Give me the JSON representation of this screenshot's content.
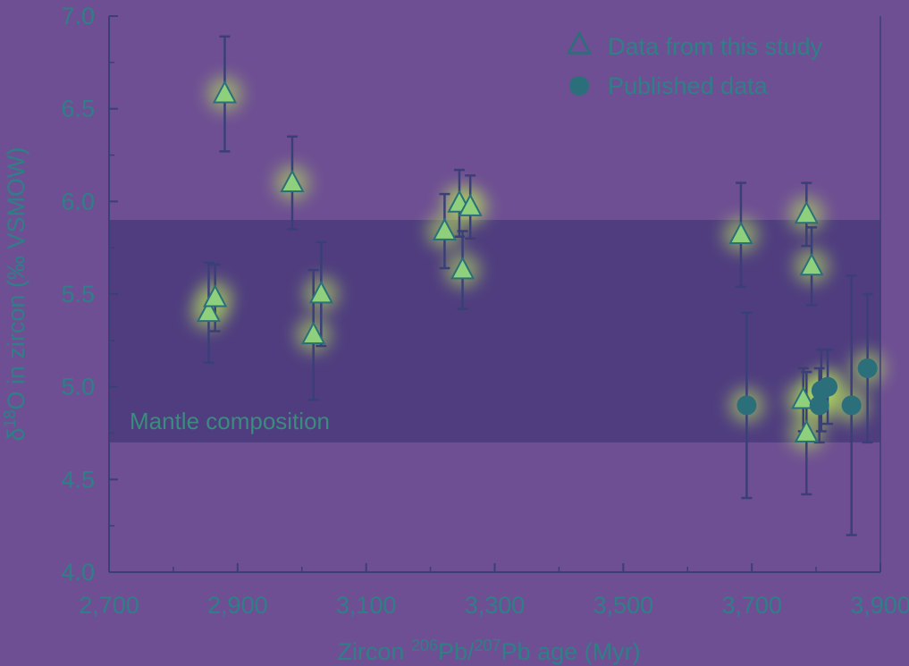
{
  "chart_data": {
    "type": "scatter",
    "xlabel_main": "Zircon ",
    "xlabel_sup1": "206",
    "xlabel_mid": "Pb/",
    "xlabel_sup2": "207",
    "xlabel_end": "Pb age (Myr)",
    "ylabel_pre": "δ",
    "ylabel_sup": "18",
    "ylabel_post": "O in zircon (‰ VSMOW)",
    "xlim": [
      2700,
      3900
    ],
    "ylim": [
      4.0,
      7.0
    ],
    "x_ticks": [
      "2,700",
      "2,900",
      "3,100",
      "3,300",
      "3,500",
      "3,700",
      "3,900"
    ],
    "x_tick_values": [
      2700,
      2900,
      3100,
      3300,
      3500,
      3700,
      3900
    ],
    "x_minor_step": 100,
    "y_ticks": [
      "4.0",
      "4.5",
      "5.0",
      "5.5",
      "6.0",
      "6.5",
      "7.0"
    ],
    "y_tick_values": [
      4.0,
      4.5,
      5.0,
      5.5,
      6.0,
      6.5,
      7.0
    ],
    "y_minor_step": 0.25,
    "band": {
      "label": "Mantle composition",
      "y_range": [
        4.7,
        5.9
      ]
    },
    "legend_position": "top-right",
    "series": [
      {
        "name": "Data from this study",
        "marker": "triangle",
        "points": [
          {
            "x": 2880,
            "y": 6.58,
            "err": 0.31
          },
          {
            "x": 2855,
            "y": 5.4,
            "err": 0.27
          },
          {
            "x": 2865,
            "y": 5.48,
            "err": 0.18
          },
          {
            "x": 2985,
            "y": 6.1,
            "err": 0.25
          },
          {
            "x": 3018,
            "y": 5.28,
            "err": 0.35
          },
          {
            "x": 3030,
            "y": 5.5,
            "err": 0.28
          },
          {
            "x": 3222,
            "y": 5.84,
            "err": 0.2
          },
          {
            "x": 3245,
            "y": 5.99,
            "err": 0.18
          },
          {
            "x": 3262,
            "y": 5.97,
            "err": 0.17
          },
          {
            "x": 3250,
            "y": 5.63,
            "err": 0.21
          },
          {
            "x": 3683,
            "y": 5.82,
            "err": 0.28
          },
          {
            "x": 3785,
            "y": 5.93,
            "err": 0.17
          },
          {
            "x": 3793,
            "y": 5.65,
            "err": 0.21
          },
          {
            "x": 3780,
            "y": 4.93,
            "err": 0.17
          },
          {
            "x": 3785,
            "y": 4.75,
            "err": 0.33
          }
        ]
      },
      {
        "name": "Published data",
        "marker": "circle",
        "points": [
          {
            "x": 3692,
            "y": 4.9,
            "err": 0.5
          },
          {
            "x": 3808,
            "y": 4.98,
            "err": 0.22
          },
          {
            "x": 3818,
            "y": 5.0,
            "err": 0.2
          },
          {
            "x": 3805,
            "y": 4.9,
            "err": 0.2
          },
          {
            "x": 3855,
            "y": 4.9,
            "err": 0.7
          },
          {
            "x": 3880,
            "y": 5.1,
            "err": 0.4
          }
        ]
      }
    ]
  },
  "colors": {
    "background": "#6e4f93",
    "band": "#4f3d7f",
    "axis": "#3b3f78",
    "marker": "#2a6f7a",
    "triangle_fill": "#8fd07c",
    "glow": "#b8e65a"
  }
}
